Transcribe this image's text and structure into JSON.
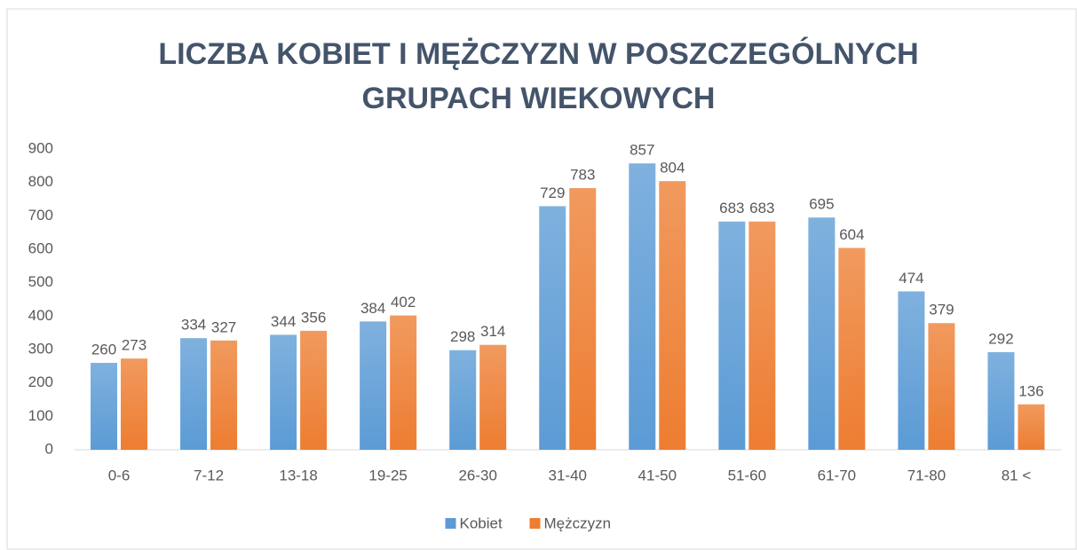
{
  "chart_data": {
    "type": "bar",
    "title": "LICZBA KOBIET I MĘŻCZYZN W POSZCZEGÓLNYCH GRUPACH WIEKOWYCH",
    "categories": [
      "0-6",
      "7-12",
      "13-18",
      "19-25",
      "26-30",
      "31-40",
      "41-50",
      "51-60",
      "61-70",
      "71-80",
      "81 <"
    ],
    "series": [
      {
        "name": "Kobiet",
        "color": "#5b9bd5",
        "values": [
          260,
          334,
          344,
          384,
          298,
          729,
          857,
          683,
          695,
          474,
          292
        ]
      },
      {
        "name": "Mężczyzn",
        "color": "#ed7d31",
        "values": [
          273,
          327,
          356,
          402,
          314,
          783,
          804,
          683,
          604,
          379,
          136
        ]
      }
    ],
    "ylim": [
      0,
      900
    ],
    "yticks": [
      0,
      100,
      200,
      300,
      400,
      500,
      600,
      700,
      800,
      900
    ],
    "grid": false,
    "legend": "bottom"
  }
}
